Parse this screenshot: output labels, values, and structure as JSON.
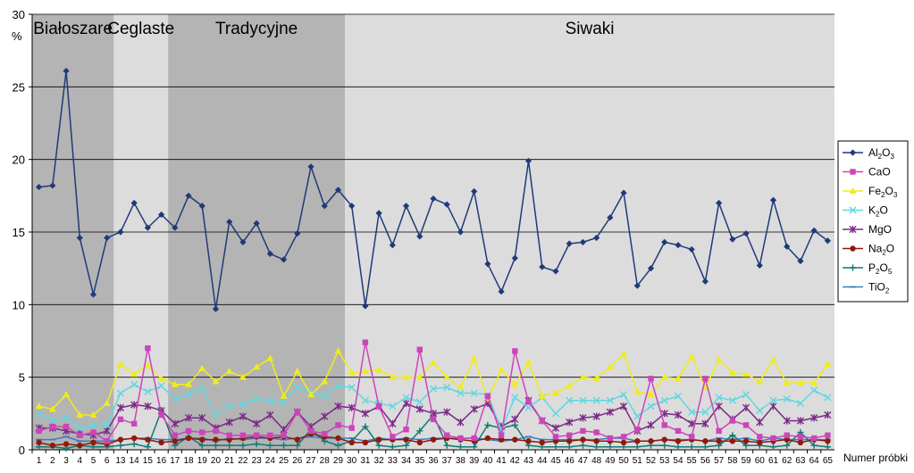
{
  "chart_data": {
    "type": "line",
    "ylabel_unit": "%",
    "xlabel": "Numer próbki",
    "ylim": [
      0,
      30
    ],
    "yticks": [
      0,
      5,
      10,
      15,
      20,
      25,
      30
    ],
    "grid": true,
    "legend_position": "right",
    "x": [
      "1",
      "2",
      "3",
      "4",
      "5",
      "6",
      "13",
      "14",
      "15",
      "16",
      "17",
      "18",
      "19",
      "20",
      "21",
      "22",
      "23",
      "24",
      "25",
      "26",
      "27",
      "28",
      "29",
      "30",
      "31",
      "32",
      "33",
      "34",
      "35",
      "36",
      "37",
      "38",
      "39",
      "40",
      "41",
      "42",
      "43",
      "44",
      "45",
      "46",
      "47",
      "48",
      "49",
      "50",
      "51",
      "52",
      "53",
      "54",
      "55",
      "56",
      "57",
      "58",
      "59",
      "60",
      "61",
      "62",
      "63",
      "64",
      "65"
    ],
    "regions": [
      {
        "label": "Białoszare",
        "from": 1,
        "to": 6,
        "color": "#b4b4b4"
      },
      {
        "label": "Ceglaste",
        "from": 7,
        "to": 10,
        "color": "#dcdcdc"
      },
      {
        "label": "Tradycyjne",
        "from": 11,
        "to": 23,
        "color": "#b4b4b4"
      },
      {
        "label": "Siwaki",
        "from": 24,
        "to": 59,
        "color": "#dcdcdc"
      }
    ],
    "series": [
      {
        "name": "Al2O3",
        "name_main": "Al",
        "name_sub1": "2",
        "name_mid": "O",
        "name_sub2": "3",
        "color": "#1f3a78",
        "marker": "diamond",
        "values": [
          18.1,
          18.2,
          26.1,
          14.6,
          10.7,
          14.6,
          15.0,
          17.0,
          15.3,
          16.2,
          15.3,
          17.5,
          16.8,
          9.7,
          15.7,
          14.3,
          15.6,
          13.5,
          13.1,
          14.9,
          19.5,
          16.8,
          17.9,
          16.8,
          9.9,
          16.3,
          14.1,
          16.8,
          14.7,
          17.3,
          16.9,
          15.0,
          17.8,
          12.8,
          10.9,
          13.2,
          19.9,
          12.6,
          12.3,
          14.2,
          14.3,
          14.6,
          16.0,
          17.7,
          11.3,
          12.5,
          14.3,
          14.1,
          13.8,
          11.6,
          17.0,
          14.5,
          14.9,
          12.7,
          17.2,
          14.0,
          13.0,
          15.1,
          14.4
        ]
      },
      {
        "name": "CaO",
        "name_main": "CaO",
        "name_sub1": "",
        "name_mid": "",
        "name_sub2": "",
        "color": "#cc44bb",
        "marker": "square",
        "values": [
          1.3,
          1.6,
          1.6,
          1.0,
          1.2,
          0.6,
          2.1,
          1.8,
          7.0,
          2.4,
          1.0,
          1.3,
          1.2,
          1.3,
          1.0,
          1.0,
          1.0,
          1.0,
          1.0,
          2.6,
          1.3,
          1.1,
          1.7,
          1.5,
          7.4,
          3.0,
          0.9,
          1.4,
          6.9,
          2.1,
          1.0,
          0.8,
          0.8,
          3.7,
          1.0,
          6.8,
          3.3,
          2.0,
          0.9,
          1.0,
          1.3,
          1.2,
          0.8,
          0.9,
          1.4,
          4.9,
          1.7,
          1.3,
          0.9,
          4.9,
          1.3,
          2.0,
          1.7,
          0.9,
          0.8,
          1.0,
          0.9,
          0.8,
          1.0
        ]
      },
      {
        "name": "Fe2O3",
        "name_main": "Fe",
        "name_sub1": "2",
        "name_mid": "O",
        "name_sub2": "3",
        "color": "#f0ec1a",
        "marker": "triangle",
        "values": [
          3.0,
          2.8,
          3.8,
          2.4,
          2.4,
          3.2,
          5.9,
          5.2,
          5.8,
          4.9,
          4.5,
          4.5,
          5.6,
          4.7,
          5.4,
          5.0,
          5.7,
          6.3,
          3.7,
          5.4,
          3.8,
          4.7,
          6.8,
          5.3,
          5.4,
          5.5,
          5.0,
          5.0,
          5.0,
          6.0,
          5.0,
          4.3,
          6.3,
          3.5,
          5.5,
          4.5,
          6.0,
          3.7,
          3.9,
          4.4,
          5.0,
          4.9,
          5.7,
          6.6,
          4.0,
          3.8,
          5.0,
          4.9,
          6.4,
          4.3,
          6.2,
          5.3,
          5.2,
          4.7,
          6.2,
          4.6,
          4.6,
          4.6,
          5.9
        ]
      },
      {
        "name": "K2O",
        "name_main": "K",
        "name_sub1": "2",
        "name_mid": "O",
        "name_sub2": "",
        "color": "#5fd8e0",
        "marker": "x",
        "values": [
          2.5,
          2.0,
          2.2,
          1.5,
          1.7,
          1.7,
          3.9,
          4.5,
          4.0,
          4.4,
          3.5,
          3.8,
          4.2,
          2.4,
          3.0,
          3.1,
          3.5,
          3.4,
          3.3,
          4.3,
          3.9,
          3.7,
          4.4,
          4.3,
          3.4,
          3.2,
          3.0,
          3.6,
          3.3,
          4.2,
          4.3,
          3.9,
          3.9,
          3.8,
          1.4,
          3.6,
          2.9,
          3.6,
          2.5,
          3.4,
          3.4,
          3.4,
          3.4,
          3.8,
          2.3,
          3.0,
          3.4,
          3.7,
          2.6,
          2.6,
          3.6,
          3.4,
          3.8,
          2.7,
          3.4,
          3.5,
          3.2,
          4.1,
          3.6
        ]
      },
      {
        "name": "MgO",
        "name_main": "MgO",
        "name_sub1": "",
        "name_mid": "",
        "name_sub2": "",
        "color": "#7a2a86",
        "marker": "star",
        "values": [
          1.5,
          1.5,
          1.3,
          1.1,
          1.0,
          1.3,
          2.9,
          3.1,
          3.0,
          2.7,
          1.8,
          2.2,
          2.2,
          1.5,
          1.9,
          2.3,
          1.8,
          2.4,
          1.4,
          2.6,
          1.6,
          2.3,
          3.0,
          2.9,
          2.5,
          3.0,
          1.8,
          3.2,
          2.8,
          2.5,
          2.6,
          1.9,
          2.8,
          3.2,
          1.6,
          2.1,
          3.4,
          2.0,
          1.5,
          1.9,
          2.2,
          2.3,
          2.6,
          3.0,
          1.3,
          1.7,
          2.5,
          2.4,
          1.8,
          1.8,
          3.0,
          2.1,
          2.9,
          1.9,
          3.0,
          2.0,
          2.0,
          2.2,
          2.4
        ]
      },
      {
        "name": "Na2O",
        "name_main": "Na",
        "name_sub1": "2",
        "name_mid": "O",
        "name_sub2": "",
        "color": "#8e1a0e",
        "marker": "circle",
        "values": [
          0.5,
          0.3,
          0.4,
          0.3,
          0.5,
          0.4,
          0.7,
          0.8,
          0.7,
          0.5,
          0.6,
          0.8,
          0.7,
          0.7,
          0.7,
          0.8,
          0.9,
          0.8,
          0.9,
          0.7,
          1.1,
          0.9,
          0.8,
          0.5,
          0.5,
          0.7,
          0.7,
          0.7,
          0.5,
          0.7,
          0.8,
          0.7,
          0.6,
          0.8,
          0.7,
          0.7,
          0.6,
          0.5,
          0.6,
          0.6,
          0.7,
          0.6,
          0.6,
          0.5,
          0.6,
          0.6,
          0.7,
          0.6,
          0.7,
          0.6,
          0.6,
          0.6,
          0.6,
          0.5,
          0.6,
          0.7,
          0.5,
          0.7,
          0.6
        ]
      },
      {
        "name": "P2O5",
        "name_main": "P",
        "name_sub1": "2",
        "name_mid": "O",
        "name_sub2": "5",
        "color": "#127a72",
        "marker": "plus",
        "values": [
          0.2,
          0.2,
          0.1,
          0.3,
          0.2,
          0.2,
          0.3,
          0.4,
          0.2,
          2.7,
          0.3,
          0.9,
          0.3,
          0.3,
          0.3,
          0.3,
          0.4,
          0.3,
          0.3,
          0.3,
          1.4,
          0.6,
          0.3,
          0.6,
          1.6,
          0.3,
          0.2,
          0.3,
          1.3,
          2.4,
          0.3,
          0.2,
          0.2,
          1.7,
          1.5,
          1.7,
          0.3,
          0.2,
          0.2,
          0.2,
          0.3,
          0.2,
          0.2,
          0.2,
          0.2,
          0.3,
          0.3,
          0.2,
          0.2,
          0.2,
          0.3,
          1.0,
          0.3,
          0.3,
          0.2,
          0.3,
          1.2,
          0.3,
          0.2
        ]
      },
      {
        "name": "TiO2",
        "name_main": "TiO",
        "name_sub1": "",
        "name_mid": "",
        "name_sub2": "2",
        "color": "#3f7bc9",
        "marker": "dash",
        "values": [
          0.7,
          0.7,
          0.9,
          0.6,
          0.6,
          0.6,
          0.7,
          0.8,
          0.8,
          0.7,
          0.7,
          0.8,
          0.8,
          0.6,
          0.8,
          0.7,
          0.8,
          0.8,
          0.7,
          0.8,
          0.9,
          0.8,
          0.8,
          0.8,
          0.6,
          0.8,
          0.7,
          0.8,
          0.7,
          0.8,
          0.8,
          0.8,
          0.8,
          0.7,
          0.6,
          0.7,
          0.9,
          0.7,
          0.7,
          0.7,
          0.7,
          0.7,
          0.8,
          0.8,
          0.6,
          0.6,
          0.7,
          0.7,
          0.7,
          0.6,
          0.8,
          0.7,
          0.8,
          0.6,
          0.8,
          0.7,
          0.7,
          0.7,
          0.7
        ]
      }
    ]
  }
}
